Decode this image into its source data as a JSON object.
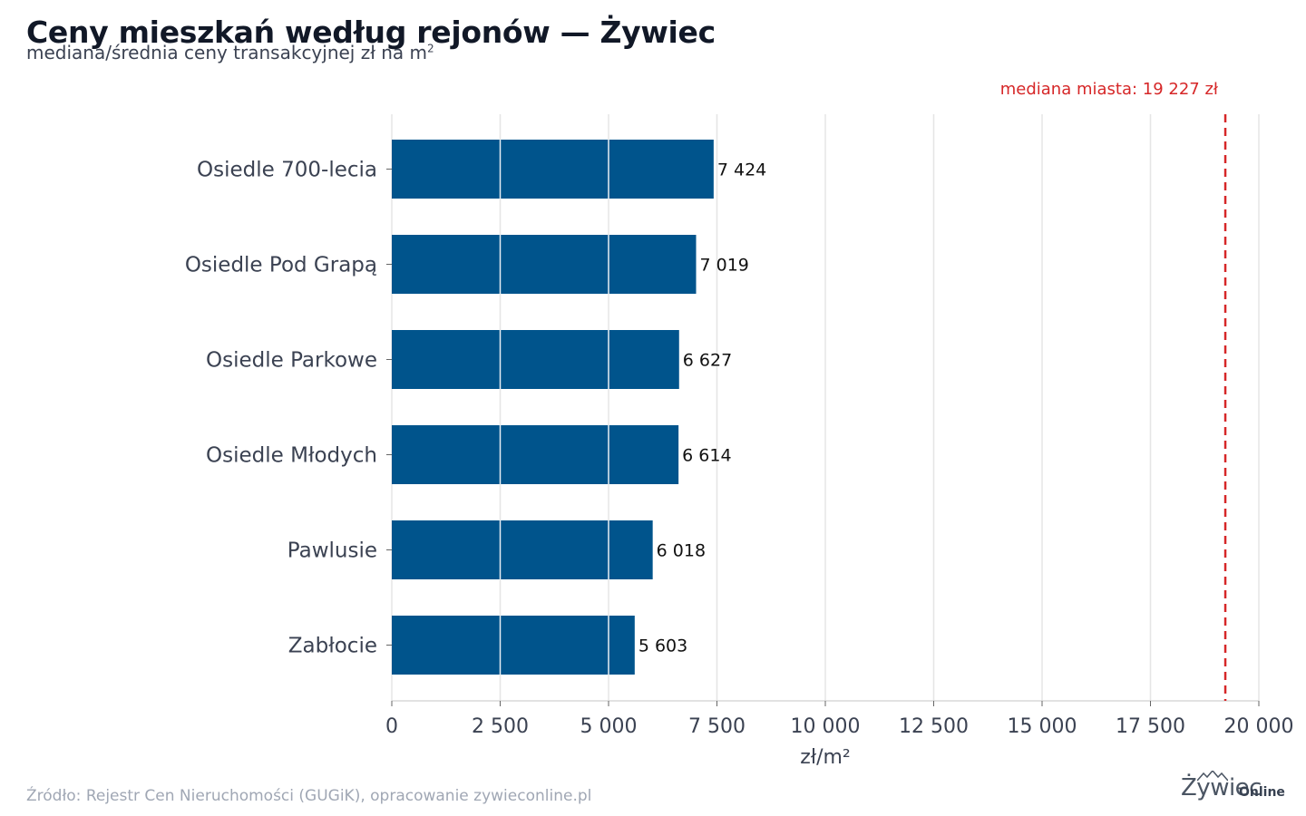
{
  "title": "Ceny mieszkań według rejonów — Żywiec",
  "subtitle": "mediana/średnia ceny transakcyjnej zł na m",
  "subtitle_sup": "2",
  "source": "Źródło: Rejestr Cen Nieruchomości (GUGiK), opracowanie zywieconline.pl",
  "logo": {
    "main": "Żywiec",
    "suffix": "Online"
  },
  "colors": {
    "bar": "#00548c",
    "median_line": "#d62728",
    "grid": "#e5e5e5",
    "tick_text": "#3b4252"
  },
  "chart_data": {
    "type": "bar",
    "orientation": "horizontal",
    "categories": [
      "Osiedle 700-lecia",
      "Osiedle Pod Grapą",
      "Osiedle Parkowe",
      "Osiedle Młodych",
      "Pawlusie",
      "Zabłocie"
    ],
    "values": [
      7424,
      7019,
      6627,
      6614,
      6018,
      5603
    ],
    "value_labels": [
      "7 424",
      "7 019",
      "6 627",
      "6 614",
      "6 018",
      "5 603"
    ],
    "xlabel": "zł/m²",
    "xlim": [
      0,
      20000
    ],
    "xticks": [
      0,
      2500,
      5000,
      7500,
      10000,
      12500,
      15000,
      17500,
      20000
    ],
    "xtick_labels": [
      "0",
      "2 500",
      "5 000",
      "7 500",
      "10 000",
      "12 500",
      "15 000",
      "17 500",
      "20 000"
    ],
    "grid": "vertical",
    "reference_line": {
      "value": 19227,
      "label": "mediana miasta: 19 227 zł",
      "style": "dashed"
    }
  }
}
